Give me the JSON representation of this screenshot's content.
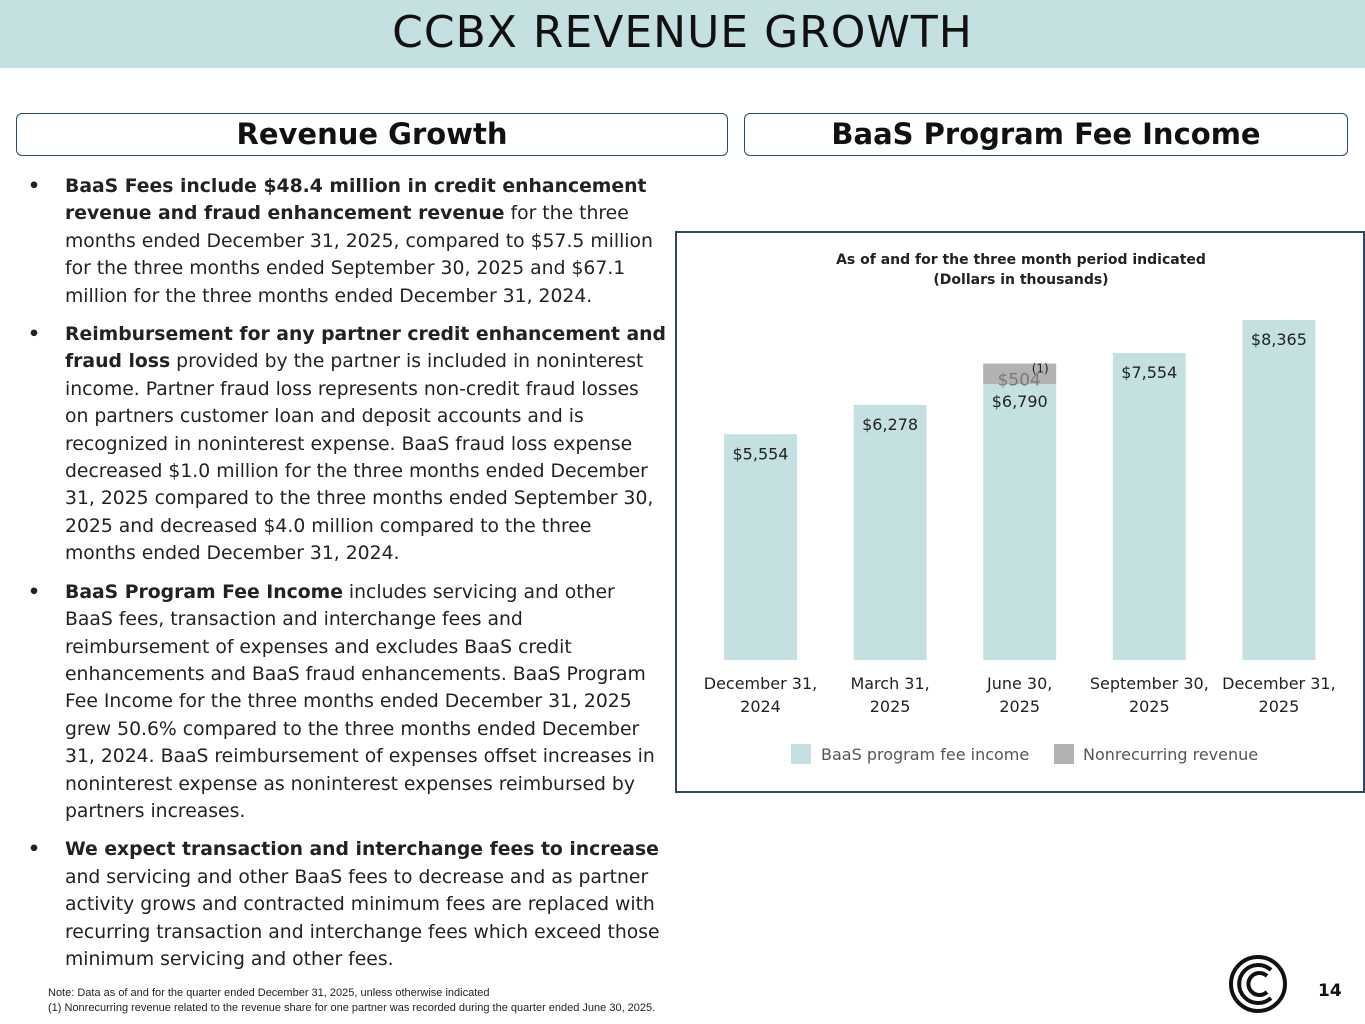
{
  "title": "CCBX REVENUE GROWTH",
  "left_header": "Revenue Growth",
  "right_header": "BaaS Program Fee Income",
  "bullets": [
    {
      "bold": "BaaS Fees include $48.4 million in credit enhancement revenue and fraud enhancement revenue",
      "text": " for the three months ended December 31, 2025, compared to $57.5 million for the three months ended September 30, 2025 and $67.1 million for the three months ended December 31, 2024."
    },
    {
      "bold": "Reimbursement for any partner credit enhancement and fraud loss",
      "text": " provided by the partner is included in noninterest income. Partner fraud loss represents non-credit fraud losses on partners customer loan and deposit accounts and is recognized in noninterest expense.  BaaS fraud loss expense decreased $1.0 million for the three months ended December 31, 2025 compared to the three months ended September 30, 2025 and decreased $4.0 million compared to the three months ended December 31, 2024."
    },
    {
      "bold": "BaaS Program Fee Income",
      "text": " includes servicing and other BaaS fees, transaction and interchange fees and reimbursement of expenses and excludes BaaS credit enhancements and BaaS fraud enhancements.  BaaS Program Fee Income for the three months ended December 31, 2025 grew 50.6% compared to the three months ended December 31, 2024.  BaaS reimbursement of expenses offset increases in noninterest expense as noninterest expenses reimbursed by partners increases."
    },
    {
      "bold": "We expect transaction and interchange fees to increase",
      "text": " and servicing and other BaaS fees to decrease and as partner activity grows and contracted minimum fees are replaced with recurring transaction and interchange fees which exceed those minimum servicing and other fees."
    }
  ],
  "bullet_symbol": "•",
  "chart_data": {
    "type": "bar",
    "stacked": true,
    "title": "As of and for the three month period indicated",
    "subtitle": "(Dollars in thousands)",
    "categories": [
      [
        "December 31,",
        "2024"
      ],
      [
        "March 31,",
        "2025"
      ],
      [
        "June 30,",
        "2025"
      ],
      [
        "September 30,",
        "2025"
      ],
      [
        "December 31,",
        "2025"
      ]
    ],
    "series": [
      {
        "name": "BaaS program fee income",
        "color": "#c5e0e0",
        "values": [
          5554,
          6278,
          6790,
          7554,
          8365
        ],
        "labels": [
          "$5,554",
          "$6,278",
          "$6,790",
          "$7,554",
          "$8,365"
        ]
      },
      {
        "name": "Nonrecurring revenue",
        "color": "#b2b2b2",
        "values": [
          0,
          0,
          504,
          0,
          0
        ],
        "labels": [
          "",
          "",
          "$504",
          "",
          ""
        ]
      }
    ],
    "annotation": "(1)",
    "ylim": [
      0,
      8365
    ],
    "legend": "bottom"
  },
  "footnotes": [
    "Note:  Data as of and for the quarter ended December 31, 2025, unless otherwise indicated",
    "(1)    Nonrecurring revenue related to the revenue share for one partner was recorded during the quarter ended June 30, 2025."
  ],
  "page_number": "14",
  "colors": {
    "title_bg": "#c5e0e0",
    "frame": "#2b4a6f",
    "bar": "#c5e0e0",
    "nonrecurring": "#b2b2b2"
  }
}
